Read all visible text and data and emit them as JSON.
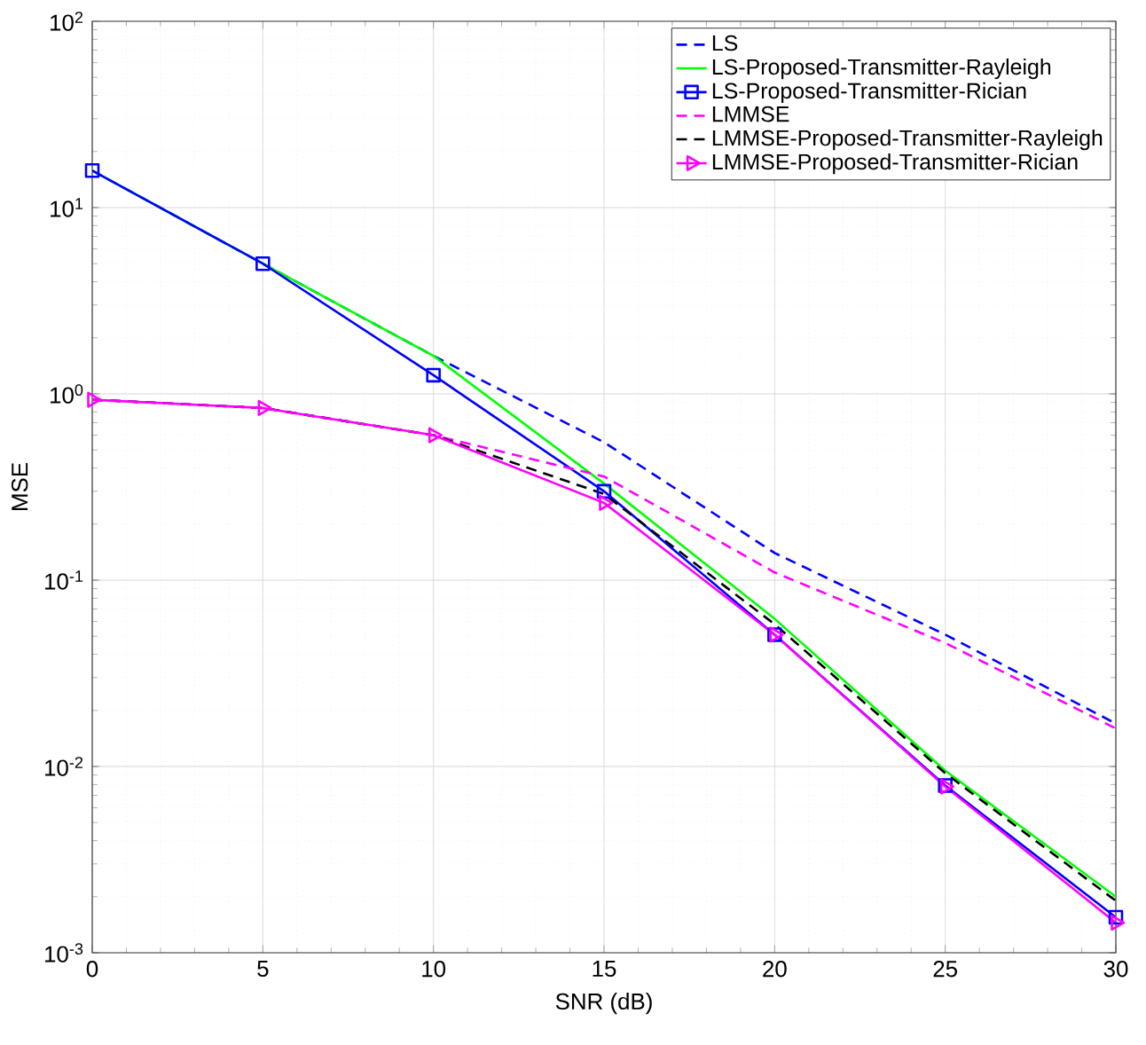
{
  "chart_data": {
    "type": "line",
    "xlabel": "SNR (dB)",
    "ylabel": "MSE",
    "x": [
      0,
      5,
      10,
      15,
      20,
      25,
      30
    ],
    "xlim": [
      0,
      30
    ],
    "xticks": [
      0,
      5,
      10,
      15,
      20,
      25,
      30
    ],
    "ylim": [
      0.001,
      100
    ],
    "yticks": [
      {
        "value": 0.001,
        "label": "10$^{-3}$"
      },
      {
        "value": 0.01,
        "label": "10$^{-2}$"
      },
      {
        "value": 0.1,
        "label": "10$^{-1}$"
      },
      {
        "value": 1,
        "label": "10$^{0}$"
      },
      {
        "value": 10,
        "label": "10$^{1}$"
      },
      {
        "value": 100,
        "label": "10$^{2}$"
      }
    ],
    "log": "y",
    "grid": true,
    "legend": "top right",
    "series": [
      {
        "name": "LS",
        "color": "#0000ff",
        "line_style": "dashed",
        "marker": "none",
        "values": [
          15.8,
          5.0,
          1.6,
          0.55,
          0.14,
          0.051,
          0.017
        ]
      },
      {
        "name": "LS-Proposed-Transmitter-Rayleigh",
        "color": "#00ff00",
        "line_style": "solid",
        "marker": "none",
        "values": [
          15.8,
          5.0,
          1.6,
          0.33,
          0.062,
          0.0095,
          0.002
        ]
      },
      {
        "name": "LS-Proposed-Transmitter-Rician",
        "color": "#0000ff",
        "line_style": "solid",
        "marker": "square",
        "values": [
          15.8,
          5.0,
          1.26,
          0.3,
          0.051,
          0.0079,
          0.00155
        ]
      },
      {
        "name": "LMMSE",
        "color": "#ff00ff",
        "line_style": "dashed",
        "marker": "none",
        "values": [
          0.93,
          0.84,
          0.6,
          0.36,
          0.11,
          0.046,
          0.016
        ]
      },
      {
        "name": "LMMSE-Proposed-Transmitter-Rayleigh",
        "color": "#000000",
        "line_style": "dashed",
        "marker": "none",
        "values": [
          0.93,
          0.84,
          0.6,
          0.29,
          0.058,
          0.0092,
          0.0019
        ]
      },
      {
        "name": "LMMSE-Proposed-Transmitter-Rician",
        "color": "#ff00ff",
        "line_style": "solid",
        "marker": "triangle",
        "values": [
          0.93,
          0.84,
          0.6,
          0.26,
          0.051,
          0.0078,
          0.00145
        ]
      }
    ]
  }
}
